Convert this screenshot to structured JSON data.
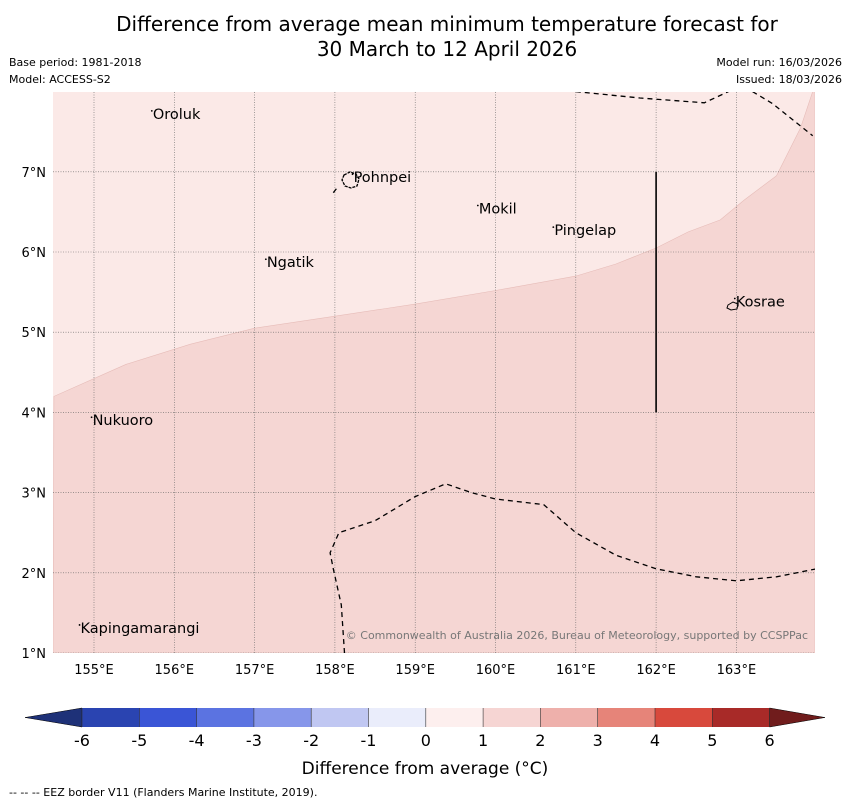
{
  "title": {
    "line1": "Difference from average mean minimum temperature forecast for",
    "line2": "30 March to 12 April 2026"
  },
  "meta": {
    "base_period": "Base period: 1981-2018",
    "model": "Model: ACCESS-S2",
    "model_run": "Model run: 16/03/2026",
    "issued": "Issued: 18/03/2026"
  },
  "map": {
    "lon_range": [
      154.5,
      164.0
    ],
    "lat_range": [
      1.0,
      8.0
    ],
    "x_ticks": [
      {
        "value": 155,
        "label": "155°E"
      },
      {
        "value": 156,
        "label": "156°E"
      },
      {
        "value": 157,
        "label": "157°E"
      },
      {
        "value": 158,
        "label": "158°E"
      },
      {
        "value": 159,
        "label": "159°E"
      },
      {
        "value": 160,
        "label": "160°E"
      },
      {
        "value": 161,
        "label": "161°E"
      },
      {
        "value": 162,
        "label": "162°E"
      },
      {
        "value": 163,
        "label": "163°E"
      }
    ],
    "y_ticks": [
      {
        "value": 1,
        "label": "1°N"
      },
      {
        "value": 2,
        "label": "2°N"
      },
      {
        "value": 3,
        "label": "3°N"
      },
      {
        "value": 4,
        "label": "4°N"
      },
      {
        "value": 5,
        "label": "5°N"
      },
      {
        "value": 6,
        "label": "6°N"
      },
      {
        "value": 7,
        "label": "7°N"
      }
    ],
    "regions": [
      {
        "name": "0-1 °C",
        "color": "#fbe9e7"
      },
      {
        "name": "1-2 °C",
        "color": "#f5d6d3"
      }
    ],
    "boundary_1c": [
      [
        154.5,
        4.2
      ],
      [
        155.4,
        4.6
      ],
      [
        156.2,
        4.85
      ],
      [
        157.0,
        5.05
      ],
      [
        158.0,
        5.2
      ],
      [
        159.0,
        5.35
      ],
      [
        160.0,
        5.52
      ],
      [
        161.0,
        5.7
      ],
      [
        161.5,
        5.85
      ],
      [
        162.0,
        6.05
      ],
      [
        162.4,
        6.25
      ],
      [
        162.8,
        6.4
      ],
      [
        163.1,
        6.65
      ],
      [
        163.5,
        6.95
      ],
      [
        163.8,
        7.55
      ],
      [
        163.95,
        8.0
      ]
    ],
    "locations": [
      {
        "name": "Oroluk",
        "lon": 155.72,
        "lat": 7.66
      },
      {
        "name": "Pohnpei",
        "lon": 158.22,
        "lat": 6.87
      },
      {
        "name": "Mokil",
        "lon": 159.78,
        "lat": 6.48
      },
      {
        "name": "Pingelap",
        "lon": 160.72,
        "lat": 6.21
      },
      {
        "name": "Ngatik",
        "lon": 157.14,
        "lat": 5.81
      },
      {
        "name": "Kosrae",
        "lon": 162.98,
        "lat": 5.32
      },
      {
        "name": "Nukuoro",
        "lon": 154.97,
        "lat": 3.84
      },
      {
        "name": "Kapingamarangi",
        "lon": 154.82,
        "lat": 1.25
      }
    ],
    "eez_lines": [
      [
        [
          161.0,
          8.0
        ],
        [
          161.8,
          7.92
        ],
        [
          162.6,
          7.86
        ],
        [
          162.9,
          8.0
        ]
      ],
      [
        [
          163.2,
          8.0
        ],
        [
          163.45,
          7.85
        ],
        [
          163.95,
          7.45
        ]
      ],
      [
        [
          158.12,
          1.0
        ],
        [
          158.08,
          1.6
        ],
        [
          157.98,
          2.05
        ],
        [
          157.94,
          2.25
        ],
        [
          158.05,
          2.5
        ],
        [
          158.5,
          2.65
        ],
        [
          159.0,
          2.95
        ],
        [
          159.38,
          3.11
        ],
        [
          159.7,
          3.0
        ],
        [
          160.0,
          2.92
        ],
        [
          160.6,
          2.85
        ],
        [
          161.0,
          2.5
        ],
        [
          161.5,
          2.22
        ],
        [
          162.0,
          2.05
        ],
        [
          162.5,
          1.95
        ],
        [
          163.0,
          1.9
        ],
        [
          163.5,
          1.95
        ],
        [
          164.0,
          2.05
        ]
      ],
      [
        [
          157.98,
          6.74
        ],
        [
          158.02,
          6.79
        ]
      ]
    ],
    "maritime_line": [
      [
        162.0,
        4.0
      ],
      [
        162.0,
        7.0
      ]
    ],
    "copyright": "© Commonwealth of Australia 2026, Bureau of Meteorology, supported by CCSPPac"
  },
  "colorbar": {
    "ticks": [
      "-6",
      "-5",
      "-4",
      "-3",
      "-2",
      "-1",
      "0",
      "1",
      "2",
      "3",
      "4",
      "5",
      "6"
    ],
    "colors": [
      "#2a44b1",
      "#3a55d6",
      "#5b73e1",
      "#8696ea",
      "#c0c7f2",
      "#eaedfb",
      "#fdefee",
      "#f6d5d3",
      "#eeb0ab",
      "#e68479",
      "#d8493c",
      "#a82a28"
    ],
    "under_color": "#1e3178",
    "over_color": "#701c1c",
    "label": "Difference from average (°C)"
  },
  "footer": {
    "eez_legend": "--  --  -- EEZ border V11 (Flanders Marine Institute, 2019)."
  }
}
